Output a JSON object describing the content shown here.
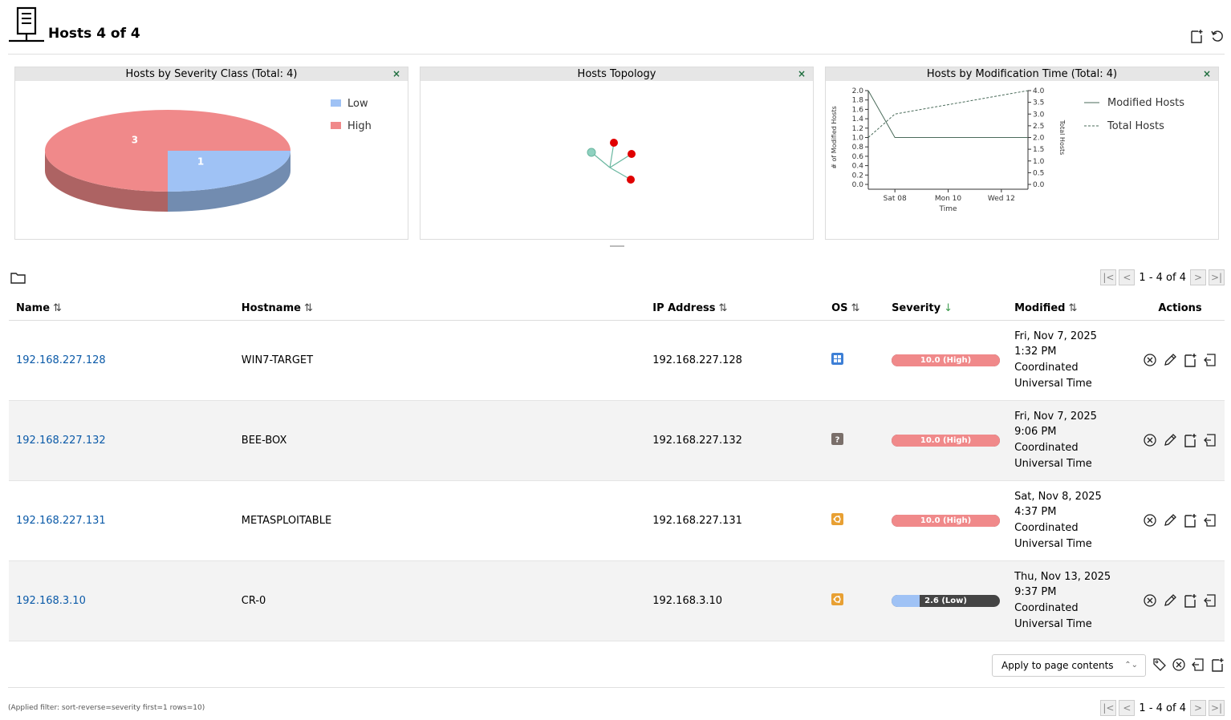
{
  "header": {
    "title": "Hosts 4 of 4",
    "icons": [
      "host-icon",
      "new-host-icon",
      "reload-icon"
    ]
  },
  "dashboard": {
    "severity_chart": {
      "title": "Hosts by Severity Class (Total: 4)",
      "close": "×"
    },
    "topology": {
      "title": "Hosts Topology",
      "close": "×"
    },
    "modtime_chart": {
      "title": "Hosts by Modification Time (Total: 4)",
      "close": "×"
    }
  },
  "chart_data": [
    {
      "type": "pie",
      "title": "Hosts by Severity Class (Total: 4)",
      "categories": [
        "Low",
        "High"
      ],
      "values": [
        1,
        3
      ],
      "colors": [
        "#9fc2f5",
        "#f0898a"
      ],
      "legend_position": "top-right"
    },
    {
      "type": "line",
      "title": "Hosts by Modification Time (Total: 4)",
      "x": [
        "Fri 07",
        "Sat 08",
        "Thu 13"
      ],
      "xticks": [
        "Sat 08",
        "Mon 10",
        "Wed 12"
      ],
      "xlabel": "Time",
      "ylabel": "# of Modified Hosts",
      "y2label": "Total Hosts",
      "ylim": [
        0,
        2.0
      ],
      "y2lim": [
        0,
        4.0
      ],
      "yticks": [
        "0.0",
        "0.2",
        "0.4",
        "0.6",
        "0.8",
        "1.0",
        "1.2",
        "1.4",
        "1.6",
        "1.8",
        "2.0"
      ],
      "y2ticks": [
        "0.0",
        "0.5",
        "1.0",
        "1.5",
        "2.0",
        "2.5",
        "3.0",
        "3.5",
        "4.0"
      ],
      "series": [
        {
          "name": "Modified Hosts",
          "values": [
            2,
            1,
            1
          ],
          "axis": "left",
          "style": "solid"
        },
        {
          "name": "Total Hosts",
          "values": [
            2,
            3,
            4
          ],
          "axis": "right",
          "style": "dashed"
        }
      ],
      "legend_position": "top-right"
    }
  ],
  "pager": {
    "text": "1 - 4 of 4"
  },
  "table": {
    "columns": {
      "name": "Name",
      "hostname": "Hostname",
      "ip": "IP Address",
      "os": "OS",
      "severity": "Severity",
      "modified": "Modified",
      "actions": "Actions"
    },
    "rows": [
      {
        "name": "192.168.227.128",
        "hostname": "WIN7-TARGET",
        "ip": "192.168.227.128",
        "os_icon": "windows-os-icon",
        "severity_text": "10.0 (High)",
        "severity_value": 10.0,
        "severity_color": "#f0898a",
        "modified": [
          "Fri, Nov 7, 2025",
          "1:32 PM",
          "Coordinated",
          "Universal Time"
        ]
      },
      {
        "name": "192.168.227.132",
        "hostname": "BEE-BOX",
        "ip": "192.168.227.132",
        "os_icon": "unknown-os-icon",
        "severity_text": "10.0 (High)",
        "severity_value": 10.0,
        "severity_color": "#f0898a",
        "modified": [
          "Fri, Nov 7, 2025",
          "9:06 PM",
          "Coordinated",
          "Universal Time"
        ]
      },
      {
        "name": "192.168.227.131",
        "hostname": "METASPLOITABLE",
        "ip": "192.168.227.131",
        "os_icon": "ubuntu-os-icon",
        "severity_text": "10.0 (High)",
        "severity_value": 10.0,
        "severity_color": "#f0898a",
        "modified": [
          "Sat, Nov 8, 2025",
          "4:37 PM",
          "Coordinated",
          "Universal Time"
        ]
      },
      {
        "name": "192.168.3.10",
        "hostname": "CR-0",
        "ip": "192.168.3.10",
        "os_icon": "ubuntu-os-icon",
        "severity_text": "2.6 (Low)",
        "severity_value": 2.6,
        "severity_color": "#9fc2f5",
        "modified": [
          "Thu, Nov 13, 2025",
          "9:37 PM",
          "Coordinated",
          "Universal Time"
        ]
      }
    ]
  },
  "bulk": {
    "select_label": "Apply to page contents"
  },
  "applied_filter": "(Applied filter: sort-reverse=severity first=1 rows=10)"
}
